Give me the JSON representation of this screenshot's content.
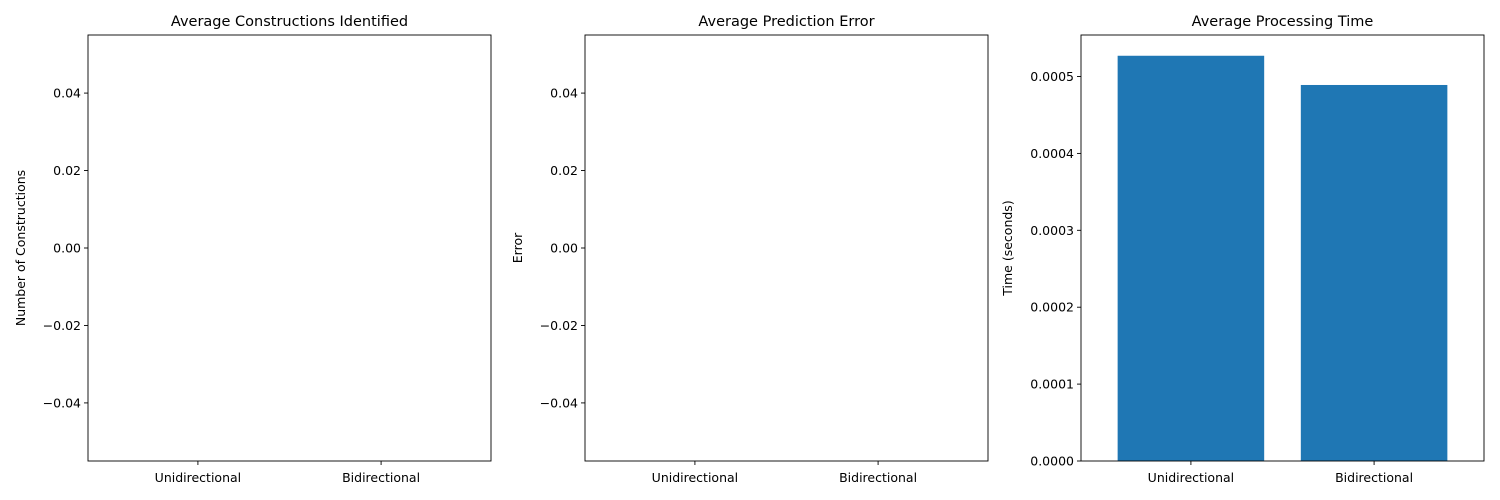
{
  "chart_data": [
    {
      "type": "bar",
      "title": "Average Constructions Identified",
      "xlabel": "",
      "ylabel": "Number of Constructions",
      "categories": [
        "Unidirectional",
        "Bidirectional"
      ],
      "values": [
        0,
        0
      ],
      "ylim": [
        -0.055,
        0.055
      ],
      "yticks": [
        -0.04,
        -0.02,
        0.0,
        0.02,
        0.04
      ],
      "ytick_labels": [
        "−0.04",
        "−0.02",
        "0.00",
        "0.02",
        "0.04"
      ],
      "grid": false,
      "color": "#1f77b4"
    },
    {
      "type": "bar",
      "title": "Average Prediction Error",
      "xlabel": "",
      "ylabel": "Error",
      "categories": [
        "Unidirectional",
        "Bidirectional"
      ],
      "values": [
        0,
        0
      ],
      "ylim": [
        -0.055,
        0.055
      ],
      "yticks": [
        -0.04,
        -0.02,
        0.0,
        0.02,
        0.04
      ],
      "ytick_labels": [
        "−0.04",
        "−0.02",
        "0.00",
        "0.02",
        "0.04"
      ],
      "grid": false,
      "color": "#1f77b4"
    },
    {
      "type": "bar",
      "title": "Average Processing Time",
      "xlabel": "",
      "ylabel": "Time (seconds)",
      "categories": [
        "Unidirectional",
        "Bidirectional"
      ],
      "values": [
        0.000527,
        0.000489
      ],
      "ylim": [
        0,
        0.000554
      ],
      "yticks": [
        0,
        0.0001,
        0.0002,
        0.0003,
        0.0004,
        0.0005
      ],
      "ytick_labels": [
        "0.0000",
        "0.0001",
        "0.0002",
        "0.0003",
        "0.0004",
        "0.0005"
      ],
      "grid": false,
      "color": "#1f77b4"
    }
  ]
}
